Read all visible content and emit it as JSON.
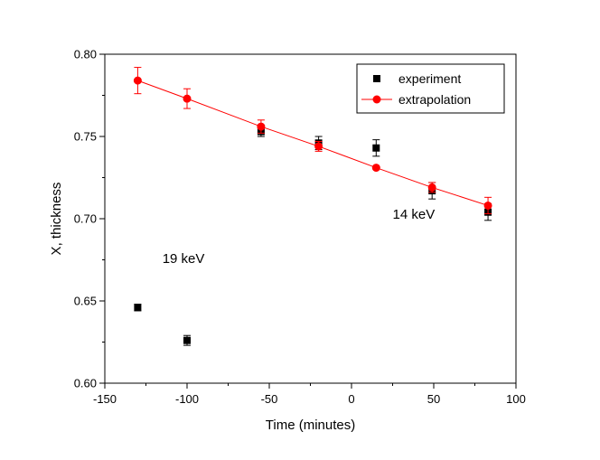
{
  "chart_data": {
    "type": "scatter",
    "xlabel": "Time (minutes)",
    "ylabel": "X, thickness",
    "xlim": [
      -150,
      100
    ],
    "ylim": [
      0.6,
      0.8
    ],
    "xticks": [
      -150,
      -100,
      -50,
      0,
      50,
      100
    ],
    "yticks": [
      0.6,
      0.65,
      0.7,
      0.75,
      0.8
    ],
    "xtick_labels": [
      "-150",
      "-100",
      "-50",
      "0",
      "50",
      "100"
    ],
    "ytick_labels": [
      "0.60",
      "0.65",
      "0.70",
      "0.75",
      "0.80"
    ],
    "grid": false,
    "legend_position": "top-right",
    "series": [
      {
        "name": "experiment",
        "marker": "square",
        "color": "#000000",
        "line": false,
        "points": [
          {
            "x": -130,
            "y": 0.646,
            "err": 0.002
          },
          {
            "x": -100,
            "y": 0.626,
            "err": 0.003
          },
          {
            "x": -55,
            "y": 0.753,
            "err": 0.003
          },
          {
            "x": -20,
            "y": 0.746,
            "err": 0.004
          },
          {
            "x": 15,
            "y": 0.743,
            "err": 0.005
          },
          {
            "x": 49,
            "y": 0.717,
            "err": 0.005
          },
          {
            "x": 83,
            "y": 0.704,
            "err": 0.005
          }
        ]
      },
      {
        "name": "extrapolation",
        "marker": "circle",
        "color": "#ff0000",
        "line": true,
        "points": [
          {
            "x": -130,
            "y": 0.784,
            "err": 0.008
          },
          {
            "x": -100,
            "y": 0.773,
            "err": 0.006
          },
          {
            "x": -55,
            "y": 0.756,
            "err": 0.004
          },
          {
            "x": -20,
            "y": 0.744,
            "err": 0.003
          },
          {
            "x": 15,
            "y": 0.731,
            "err": 0.0
          },
          {
            "x": 49,
            "y": 0.719,
            "err": 0.003
          },
          {
            "x": 83,
            "y": 0.708,
            "err": 0.005
          }
        ]
      }
    ],
    "annotations": [
      {
        "text": "19 keV",
        "x": -115,
        "y": 0.673
      },
      {
        "text": "14 keV",
        "x": 25,
        "y": 0.7
      }
    ]
  }
}
